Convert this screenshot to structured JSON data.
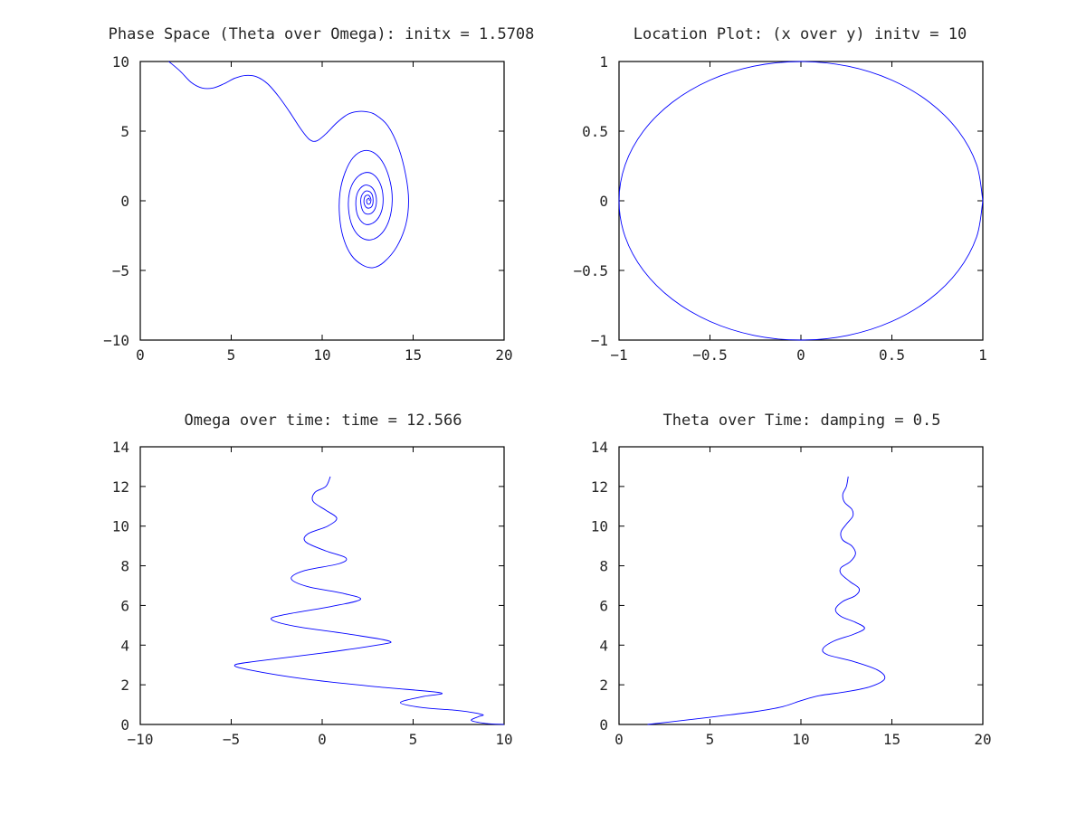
{
  "colors": {
    "series": "#0000ff",
    "axes": "#000000",
    "text": "#262626"
  },
  "chart_data": [
    {
      "type": "line",
      "title": "Phase Space (Theta over Omega): initx = 1.5708",
      "xlabel": "",
      "ylabel": "",
      "xlim": [
        0,
        20
      ],
      "ylim": [
        -10,
        10
      ],
      "xticks": [
        0,
        5,
        10,
        15,
        20
      ],
      "yticks": [
        -10,
        -5,
        0,
        5,
        10
      ],
      "xtick_labels": [
        "0",
        "5",
        "10",
        "15",
        "20"
      ],
      "ytick_labels": [
        "−10",
        "−5",
        "0",
        "5",
        "10"
      ],
      "grid": false,
      "series": [
        {
          "points": [
            [
              1.57,
              10.0
            ],
            [
              2.2,
              9.3
            ],
            [
              2.8,
              8.5
            ],
            [
              3.4,
              8.1
            ],
            [
              4.0,
              8.1
            ],
            [
              4.6,
              8.4
            ],
            [
              5.2,
              8.8
            ],
            [
              5.8,
              9.0
            ],
            [
              6.4,
              8.9
            ],
            [
              7.0,
              8.4
            ],
            [
              7.6,
              7.5
            ],
            [
              8.2,
              6.4
            ],
            [
              8.8,
              5.2
            ],
            [
              9.3,
              4.4
            ],
            [
              9.7,
              4.3
            ],
            [
              10.2,
              4.8
            ],
            [
              10.8,
              5.6
            ],
            [
              11.4,
              6.2
            ],
            [
              11.9,
              6.4
            ],
            [
              12.4,
              6.4
            ],
            [
              12.9,
              6.2
            ],
            [
              13.6,
              5.4
            ],
            [
              14.2,
              3.8
            ],
            [
              14.6,
              1.8
            ],
            [
              14.75,
              0.0
            ],
            [
              14.6,
              -1.7
            ],
            [
              14.1,
              -3.3
            ],
            [
              13.4,
              -4.4
            ],
            [
              12.8,
              -4.8
            ],
            [
              12.2,
              -4.6
            ],
            [
              11.6,
              -3.9
            ],
            [
              11.15,
              -2.6
            ],
            [
              10.95,
              -1.0
            ],
            [
              10.98,
              0.6
            ],
            [
              11.25,
              2.0
            ],
            [
              11.7,
              3.1
            ],
            [
              12.3,
              3.6
            ],
            [
              12.9,
              3.4
            ],
            [
              13.4,
              2.6
            ],
            [
              13.75,
              1.3
            ],
            [
              13.85,
              0.0
            ],
            [
              13.7,
              -1.3
            ],
            [
              13.3,
              -2.3
            ],
            [
              12.7,
              -2.8
            ],
            [
              12.1,
              -2.6
            ],
            [
              11.65,
              -1.8
            ],
            [
              11.45,
              -0.6
            ],
            [
              11.5,
              0.6
            ],
            [
              11.8,
              1.5
            ],
            [
              12.3,
              2.0
            ],
            [
              12.8,
              1.9
            ],
            [
              13.2,
              1.2
            ],
            [
              13.35,
              0.2
            ],
            [
              13.25,
              -0.8
            ],
            [
              12.9,
              -1.5
            ],
            [
              12.4,
              -1.7
            ],
            [
              12.0,
              -1.2
            ],
            [
              11.85,
              -0.3
            ],
            [
              11.95,
              0.6
            ],
            [
              12.3,
              1.1
            ],
            [
              12.7,
              1.0
            ],
            [
              12.95,
              0.4
            ],
            [
              12.95,
              -0.4
            ],
            [
              12.7,
              -0.9
            ],
            [
              12.35,
              -0.9
            ],
            [
              12.15,
              -0.4
            ],
            [
              12.15,
              0.3
            ],
            [
              12.4,
              0.7
            ],
            [
              12.7,
              0.55
            ],
            [
              12.8,
              0.0
            ],
            [
              12.7,
              -0.45
            ],
            [
              12.45,
              -0.5
            ],
            [
              12.3,
              -0.15
            ],
            [
              12.35,
              0.3
            ],
            [
              12.55,
              0.4
            ],
            [
              12.68,
              0.1
            ],
            [
              12.62,
              -0.22
            ],
            [
              12.48,
              -0.2
            ],
            [
              12.45,
              0.05
            ],
            [
              12.57,
              0.18
            ],
            [
              12.6,
              0.0
            ]
          ]
        }
      ]
    },
    {
      "type": "line",
      "title": "Location Plot: (x over y) initv = 10",
      "xlabel": "",
      "ylabel": "",
      "xlim": [
        -1,
        1
      ],
      "ylim": [
        -1,
        1
      ],
      "xticks": [
        -1,
        -0.5,
        0,
        0.5,
        1
      ],
      "yticks": [
        -1,
        -0.5,
        0,
        0.5,
        1
      ],
      "xtick_labels": [
        "−1",
        "−0.5",
        "0",
        "0.5",
        "1"
      ],
      "ytick_labels": [
        "−1",
        "−0.5",
        "0",
        "0.5",
        "1"
      ],
      "grid": false,
      "series": [
        {
          "points": [
            [
              1.0,
              0.0
            ],
            [
              0.966,
              0.259
            ],
            [
              0.866,
              0.5
            ],
            [
              0.707,
              0.707
            ],
            [
              0.5,
              0.866
            ],
            [
              0.259,
              0.966
            ],
            [
              0.0,
              1.0
            ],
            [
              -0.259,
              0.966
            ],
            [
              -0.5,
              0.866
            ],
            [
              -0.707,
              0.707
            ],
            [
              -0.866,
              0.5
            ],
            [
              -0.966,
              0.259
            ],
            [
              -1.0,
              0.0
            ],
            [
              -0.966,
              -0.259
            ],
            [
              -0.866,
              -0.5
            ],
            [
              -0.707,
              -0.707
            ],
            [
              -0.5,
              -0.866
            ],
            [
              -0.259,
              -0.966
            ],
            [
              0.0,
              -1.0
            ],
            [
              0.259,
              -0.966
            ],
            [
              0.5,
              -0.866
            ],
            [
              0.707,
              -0.707
            ],
            [
              0.866,
              -0.5
            ],
            [
              0.966,
              -0.259
            ],
            [
              1.0,
              0.0
            ]
          ]
        }
      ]
    },
    {
      "type": "line",
      "title": "Omega over time: time = 12.566",
      "xlabel": "",
      "ylabel": "",
      "xlim": [
        -10,
        10
      ],
      "ylim": [
        0,
        14
      ],
      "xticks": [
        -10,
        -5,
        0,
        5,
        10
      ],
      "yticks": [
        0,
        2,
        4,
        6,
        8,
        10,
        12,
        14
      ],
      "xtick_labels": [
        "−10",
        "−5",
        "0",
        "5",
        "10"
      ],
      "ytick_labels": [
        "0",
        "2",
        "4",
        "6",
        "8",
        "10",
        "12",
        "14"
      ],
      "grid": false,
      "series": [
        {
          "points": [
            [
              10.0,
              0.0
            ],
            [
              9.0,
              0.05
            ],
            [
              8.2,
              0.2
            ],
            [
              8.6,
              0.4
            ],
            [
              8.8,
              0.5
            ],
            [
              7.5,
              0.7
            ],
            [
              5.5,
              0.85
            ],
            [
              4.3,
              1.1
            ],
            [
              5.5,
              1.4
            ],
            [
              6.5,
              1.6
            ],
            [
              3.0,
              1.9
            ],
            [
              -1.0,
              2.3
            ],
            [
              -4.0,
              2.75
            ],
            [
              -4.8,
              3.0
            ],
            [
              -3.5,
              3.2
            ],
            [
              0.0,
              3.6
            ],
            [
              3.0,
              4.0
            ],
            [
              3.7,
              4.2
            ],
            [
              1.5,
              4.55
            ],
            [
              -1.5,
              4.95
            ],
            [
              -2.8,
              5.3
            ],
            [
              -2.0,
              5.55
            ],
            [
              0.5,
              5.95
            ],
            [
              2.1,
              6.3
            ],
            [
              1.2,
              6.6
            ],
            [
              -0.8,
              6.95
            ],
            [
              -1.7,
              7.35
            ],
            [
              -1.0,
              7.75
            ],
            [
              0.9,
              8.1
            ],
            [
              1.3,
              8.4
            ],
            [
              0.2,
              8.75
            ],
            [
              -0.9,
              9.2
            ],
            [
              -0.8,
              9.6
            ],
            [
              0.3,
              10.0
            ],
            [
              0.8,
              10.4
            ],
            [
              0.2,
              10.8
            ],
            [
              -0.5,
              11.25
            ],
            [
              -0.4,
              11.7
            ],
            [
              0.2,
              12.0
            ],
            [
              0.45,
              12.5
            ]
          ]
        }
      ]
    },
    {
      "type": "line",
      "title": "Theta over Time: damping = 0.5",
      "xlabel": "",
      "ylabel": "",
      "xlim": [
        0,
        20
      ],
      "ylim": [
        0,
        14
      ],
      "xticks": [
        0,
        5,
        10,
        15,
        20
      ],
      "yticks": [
        0,
        2,
        4,
        6,
        8,
        10,
        12,
        14
      ],
      "xtick_labels": [
        "0",
        "5",
        "10",
        "15",
        "20"
      ],
      "ytick_labels": [
        "0",
        "2",
        "4",
        "6",
        "8",
        "10",
        "12",
        "14"
      ],
      "grid": false,
      "series": [
        {
          "points": [
            [
              1.57,
              0.0
            ],
            [
              3.5,
              0.2
            ],
            [
              5.5,
              0.42
            ],
            [
              7.5,
              0.65
            ],
            [
              9.0,
              0.9
            ],
            [
              10.0,
              1.2
            ],
            [
              11.0,
              1.45
            ],
            [
              12.5,
              1.65
            ],
            [
              13.8,
              1.9
            ],
            [
              14.6,
              2.3
            ],
            [
              14.2,
              2.75
            ],
            [
              12.8,
              3.2
            ],
            [
              11.5,
              3.5
            ],
            [
              11.2,
              3.8
            ],
            [
              11.8,
              4.2
            ],
            [
              12.9,
              4.55
            ],
            [
              13.5,
              4.85
            ],
            [
              13.0,
              5.15
            ],
            [
              12.2,
              5.45
            ],
            [
              11.9,
              5.8
            ],
            [
              12.3,
              6.2
            ],
            [
              13.0,
              6.5
            ],
            [
              13.2,
              6.85
            ],
            [
              12.7,
              7.2
            ],
            [
              12.2,
              7.6
            ],
            [
              12.2,
              7.9
            ],
            [
              12.7,
              8.2
            ],
            [
              13.0,
              8.6
            ],
            [
              12.8,
              9.0
            ],
            [
              12.3,
              9.3
            ],
            [
              12.2,
              9.7
            ],
            [
              12.5,
              10.1
            ],
            [
              12.85,
              10.5
            ],
            [
              12.8,
              10.85
            ],
            [
              12.4,
              11.2
            ],
            [
              12.3,
              11.6
            ],
            [
              12.5,
              12.0
            ],
            [
              12.6,
              12.5
            ]
          ]
        }
      ]
    }
  ]
}
